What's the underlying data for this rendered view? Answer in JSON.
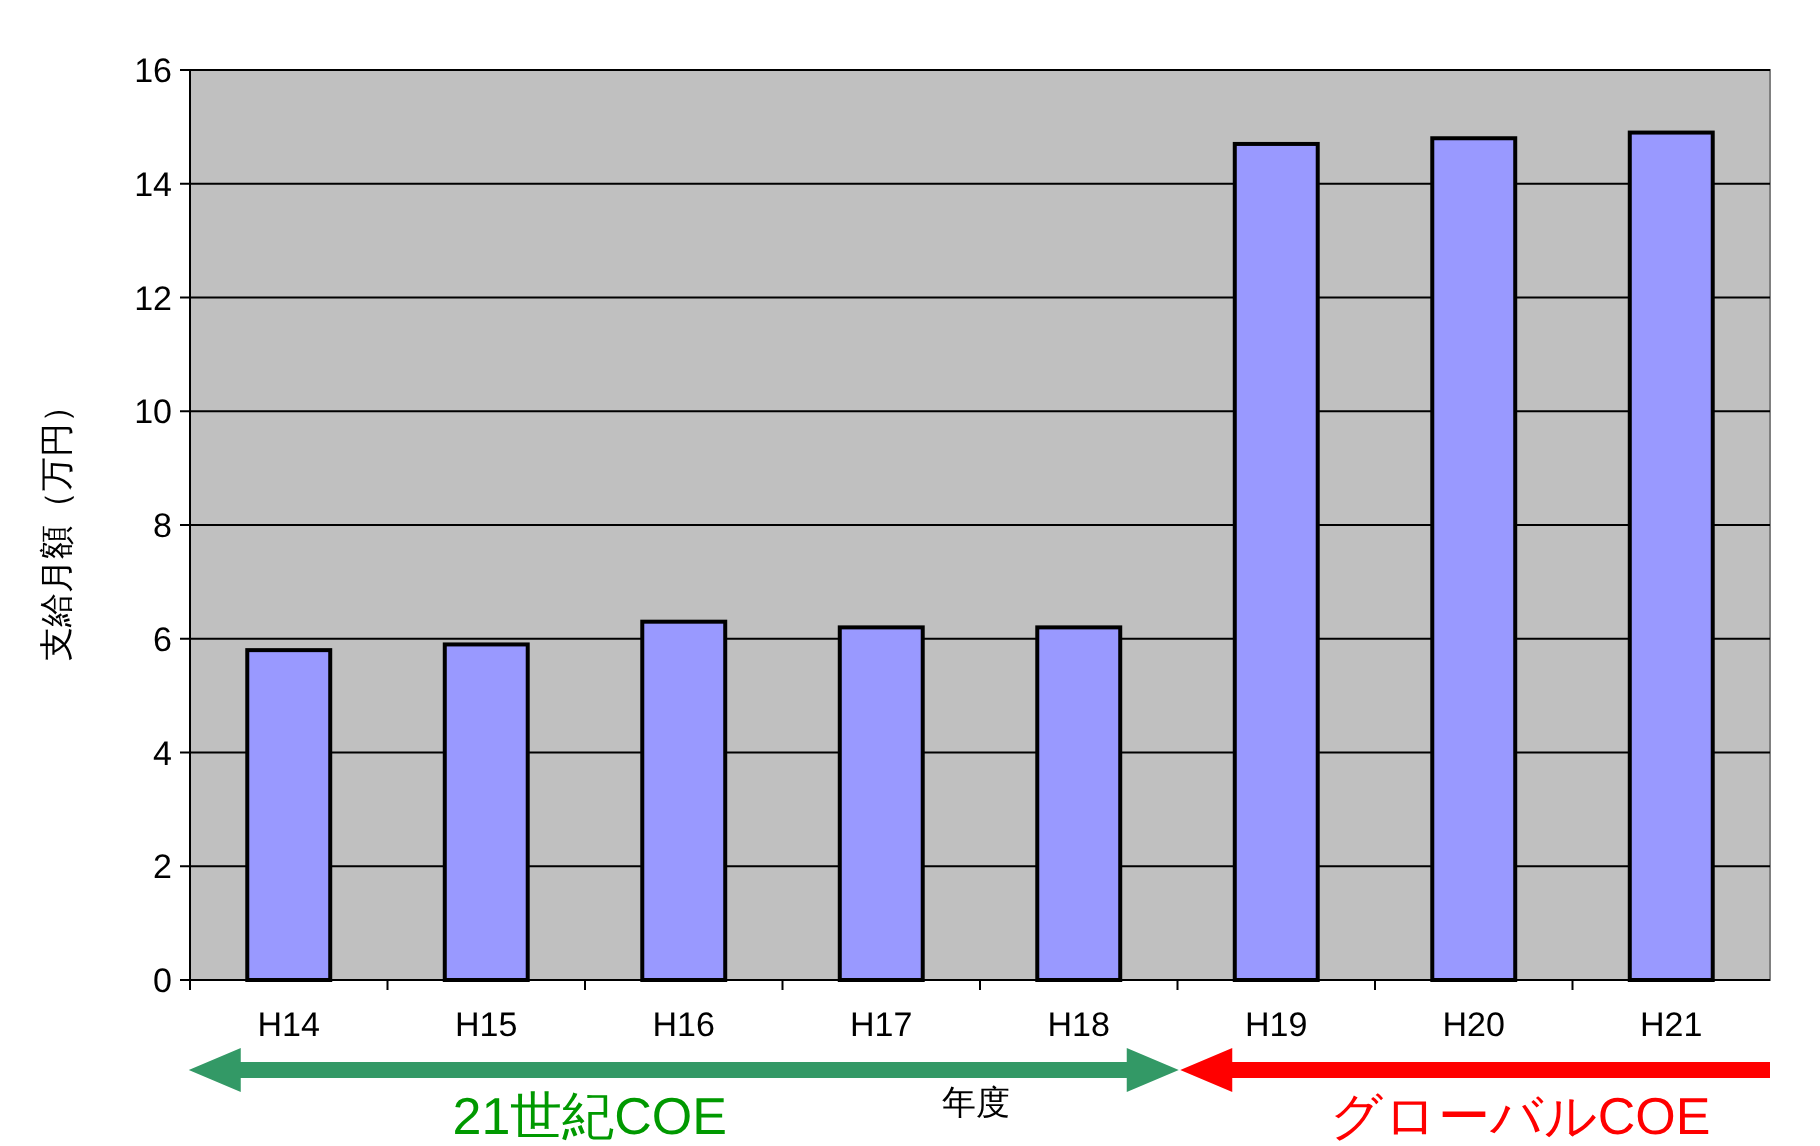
{
  "chart_data": {
    "type": "bar",
    "categories": [
      "H14",
      "H15",
      "H16",
      "H17",
      "H18",
      "H19",
      "H20",
      "H21"
    ],
    "values": [
      5.8,
      5.9,
      6.3,
      6.2,
      6.2,
      14.7,
      14.8,
      14.9
    ],
    "color": "#9999ff",
    "xlabel": "年度",
    "ylabel": "支給月額（万円）",
    "ylim": [
      0,
      16
    ],
    "yticks": [
      0,
      2,
      4,
      6,
      8,
      10,
      12,
      14,
      16
    ],
    "grid": "y",
    "annotations": [
      "21世紀COE",
      "グローバルCOE"
    ]
  }
}
